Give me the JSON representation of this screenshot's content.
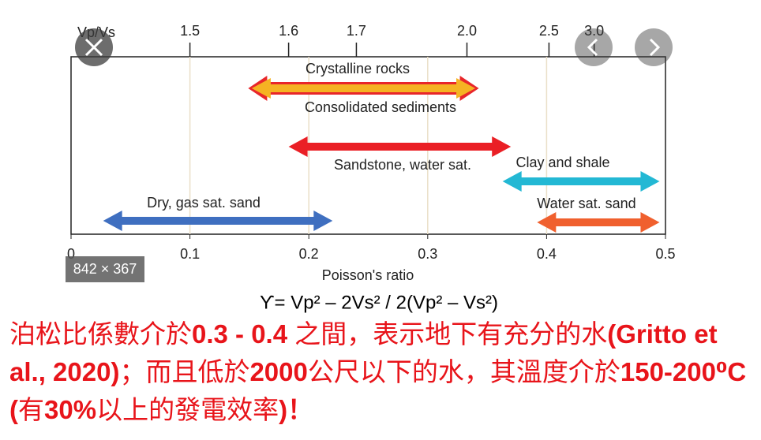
{
  "chart_data": {
    "type": "range",
    "x2label": "Vp/Vs",
    "xlabel": "Poisson's ratio",
    "xlim": [
      0,
      0.5
    ],
    "xticks": [
      0,
      0.1,
      0.2,
      0.3,
      0.4,
      0.5
    ],
    "x2ticks": [
      {
        "value": 0.1,
        "label": "1.5"
      },
      {
        "value": 0.183,
        "label": "1.6"
      },
      {
        "value": 0.24,
        "label": "1.7"
      },
      {
        "value": 0.333,
        "label": "2.0"
      },
      {
        "value": 0.402,
        "label": "2.5"
      },
      {
        "value": 0.44,
        "label": "3.0"
      }
    ],
    "grid": true,
    "series": [
      {
        "name": "Consolidated sediments",
        "color": "#e8262a",
        "values": [
          0.149,
          0.343
        ]
      },
      {
        "name": "Crystalline rocks",
        "color": "#f5b323",
        "values": [
          0.152,
          0.34
        ]
      },
      {
        "name": "Sandstone, water sat.",
        "color": "#ea1f25",
        "values": [
          0.183,
          0.37
        ]
      },
      {
        "name": "Clay and shale",
        "color": "#23b8d4",
        "values": [
          0.363,
          0.495
        ]
      },
      {
        "name": "Dry, gas sat. sand",
        "color": "#3f6fc0",
        "values": [
          0.027,
          0.22
        ]
      },
      {
        "name": "Water sat. sand",
        "color": "#f0602e",
        "values": [
          0.392,
          0.495
        ]
      }
    ]
  },
  "viewer": {
    "size_badge": "842 × 367"
  },
  "equation": "ϒ= Vp² – 2Vs² / 2(Vp² – Vs²)",
  "note": [
    {
      "text": "泊松比係數介於",
      "bold": false
    },
    {
      "text": "0.3 - 0.4",
      "bold": true
    },
    {
      "text": " 之間，表示地下有充分的水",
      "bold": false
    },
    {
      "text": "(Gritto et al., 2020)",
      "bold": true
    },
    {
      "text": "；而且低於",
      "bold": false
    },
    {
      "text": "2000",
      "bold": true
    },
    {
      "text": "公尺以下的水，其溫度介於",
      "bold": false
    },
    {
      "text": "150-200⁰C (",
      "bold": true
    },
    {
      "text": "有",
      "bold": false
    },
    {
      "text": "30%",
      "bold": true
    },
    {
      "text": "以上的發電效率",
      "bold": false
    },
    {
      "text": ")！",
      "bold": true
    }
  ]
}
